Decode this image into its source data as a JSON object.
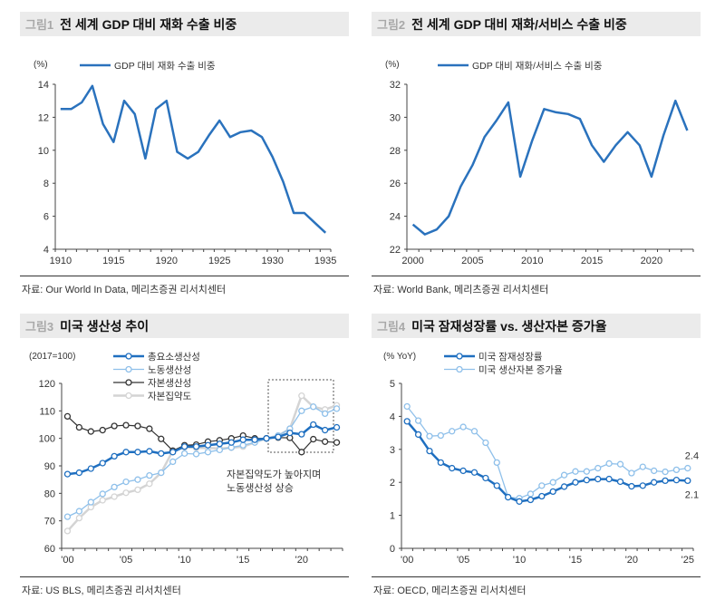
{
  "panels": [
    {
      "fig": "그림1",
      "title": "전 세계 GDP 대비 재화 수출 비중",
      "source": "자료: Our World In Data, 메리츠증권 리서치센터"
    },
    {
      "fig": "그림2",
      "title": "전 세계 GDP 대비 재화/서비스 수출 비중",
      "source": "자료: World Bank, 메리츠증권 리서치센터"
    },
    {
      "fig": "그림3",
      "title": "미국 생산성 추이",
      "source": "자료: US BLS, 메리츠증권 리서치센터"
    },
    {
      "fig": "그림4",
      "title": "미국 잠재성장률 vs. 생산자본 증가율",
      "source": "자료: OECD, 메리츠증권 리서치센터"
    }
  ],
  "chart_data": [
    {
      "type": "line",
      "unit": "(%)",
      "x": [
        1910,
        1911,
        1912,
        1913,
        1914,
        1915,
        1916,
        1917,
        1918,
        1919,
        1920,
        1921,
        1922,
        1923,
        1924,
        1925,
        1926,
        1927,
        1928,
        1929,
        1930,
        1931,
        1932,
        1933,
        1934,
        1935
      ],
      "xticks": [
        "1910",
        "1915",
        "1920",
        "1925",
        "1930",
        "1935"
      ],
      "ylim": [
        4,
        14
      ],
      "yticks": [
        4,
        6,
        8,
        10,
        12,
        14
      ],
      "legend": "top",
      "series": [
        {
          "name": "GDP 대비 재화 수출 비중",
          "color": "#2a72bd",
          "values": [
            12.5,
            12.5,
            12.9,
            13.9,
            11.6,
            10.5,
            13.0,
            12.2,
            9.5,
            12.5,
            13.0,
            9.9,
            9.5,
            9.9,
            10.9,
            11.8,
            10.8,
            11.1,
            11.2,
            10.8,
            9.6,
            8.1,
            6.2,
            6.2,
            5.6,
            5.0
          ]
        }
      ]
    },
    {
      "type": "line",
      "unit": "(%)",
      "x": [
        2000,
        2001,
        2002,
        2003,
        2004,
        2005,
        2006,
        2007,
        2008,
        2009,
        2010,
        2011,
        2012,
        2013,
        2014,
        2015,
        2016,
        2017,
        2018,
        2019,
        2020,
        2021,
        2022,
        2023
      ],
      "xticks": [
        "2000",
        "2005",
        "2010",
        "2015",
        "2020"
      ],
      "ylim": [
        22,
        32
      ],
      "yticks": [
        22,
        24,
        26,
        28,
        30,
        32
      ],
      "legend": "top",
      "series": [
        {
          "name": "GDP 대비 재화/서비스 수출 비중",
          "color": "#2a72bd",
          "values": [
            23.5,
            22.9,
            23.2,
            24.0,
            25.8,
            27.1,
            28.8,
            29.8,
            30.9,
            26.4,
            28.6,
            30.5,
            30.3,
            30.2,
            29.9,
            28.3,
            27.3,
            28.3,
            29.1,
            28.3,
            26.4,
            28.9,
            31.0,
            29.2
          ]
        }
      ]
    },
    {
      "type": "line",
      "unit": "(2017=100)",
      "x": [
        2000,
        2001,
        2002,
        2003,
        2004,
        2005,
        2006,
        2007,
        2008,
        2009,
        2010,
        2011,
        2012,
        2013,
        2014,
        2015,
        2016,
        2017,
        2018,
        2019,
        2020,
        2021,
        2022,
        2023
      ],
      "xticks": [
        "'00",
        "'05",
        "'10",
        "'15",
        "'20"
      ],
      "ylim": [
        60,
        120
      ],
      "yticks": [
        60,
        70,
        80,
        90,
        100,
        110,
        120
      ],
      "legend": "top-left",
      "annotation": "자본집약도가 높아지며\n노동생산성 상승",
      "annotation_lines": [
        "자본집약도가 높아지며",
        "노동생산성 상승"
      ],
      "series": [
        {
          "name": "총요소생산성",
          "color": "#1f6fc0",
          "values": [
            87,
            87.5,
            89,
            91,
            93.5,
            95,
            95,
            95.3,
            94.5,
            95,
            97,
            97,
            97.5,
            98,
            98.5,
            99.5,
            99.5,
            100,
            100.5,
            102,
            101.5,
            105,
            103,
            104
          ]
        },
        {
          "name": "노동생산성",
          "color": "#8fc0ea",
          "values": [
            71.5,
            73.5,
            76.8,
            79.8,
            82.3,
            84.2,
            85,
            86.5,
            87.5,
            91.5,
            94.5,
            94.3,
            95,
            95.8,
            96.7,
            97.5,
            98.5,
            100,
            101,
            103.5,
            110,
            111.5,
            109,
            110.8
          ]
        },
        {
          "name": "자본생산성",
          "color": "#333333",
          "values": [
            108,
            104,
            102.5,
            103,
            104.5,
            104.8,
            104.5,
            103.5,
            99.8,
            95.5,
            97.5,
            97.7,
            98.8,
            99.3,
            100,
            101,
            100,
            100,
            100.3,
            100.2,
            95,
            99.7,
            98.8,
            98.5
          ]
        },
        {
          "name": "자본집약도",
          "color": "#d4d4d4",
          "values": [
            66.3,
            71,
            75,
            77.5,
            78.8,
            80.2,
            81.3,
            83.5,
            87.5,
            95.5,
            96.8,
            96.5,
            96.5,
            96.3,
            96.6,
            97,
            98.5,
            100,
            101,
            103.5,
            115.5,
            111.5,
            110.5,
            112
          ]
        }
      ]
    },
    {
      "type": "line",
      "unit": "(% YoY)",
      "x": [
        2000,
        2001,
        2002,
        2003,
        2004,
        2005,
        2006,
        2007,
        2008,
        2009,
        2010,
        2011,
        2012,
        2013,
        2014,
        2015,
        2016,
        2017,
        2018,
        2019,
        2020,
        2021,
        2022,
        2023,
        2024,
        2025
      ],
      "xticks": [
        "'00",
        "'05",
        "'10",
        "'15",
        "'20",
        "'25"
      ],
      "ylim": [
        0,
        5
      ],
      "yticks": [
        0,
        1,
        2,
        3,
        4,
        5
      ],
      "legend": "top",
      "end_labels": [
        "2.1",
        "2.4"
      ],
      "series": [
        {
          "name": "미국 잠재성장률",
          "color": "#1f6fc0",
          "values": [
            3.85,
            3.45,
            2.95,
            2.6,
            2.43,
            2.35,
            2.3,
            2.13,
            1.9,
            1.55,
            1.42,
            1.47,
            1.58,
            1.72,
            1.87,
            2.0,
            2.07,
            2.1,
            2.1,
            2.02,
            1.88,
            1.9,
            2.0,
            2.05,
            2.07,
            2.05
          ]
        },
        {
          "name": "미국 생산자본 증가율",
          "color": "#8fc0ea",
          "values": [
            4.3,
            3.87,
            3.4,
            3.42,
            3.55,
            3.68,
            3.55,
            3.2,
            2.6,
            1.55,
            1.52,
            1.65,
            1.9,
            2.0,
            2.22,
            2.33,
            2.33,
            2.43,
            2.57,
            2.55,
            2.28,
            2.47,
            2.35,
            2.32,
            2.38,
            2.43
          ]
        }
      ]
    }
  ]
}
